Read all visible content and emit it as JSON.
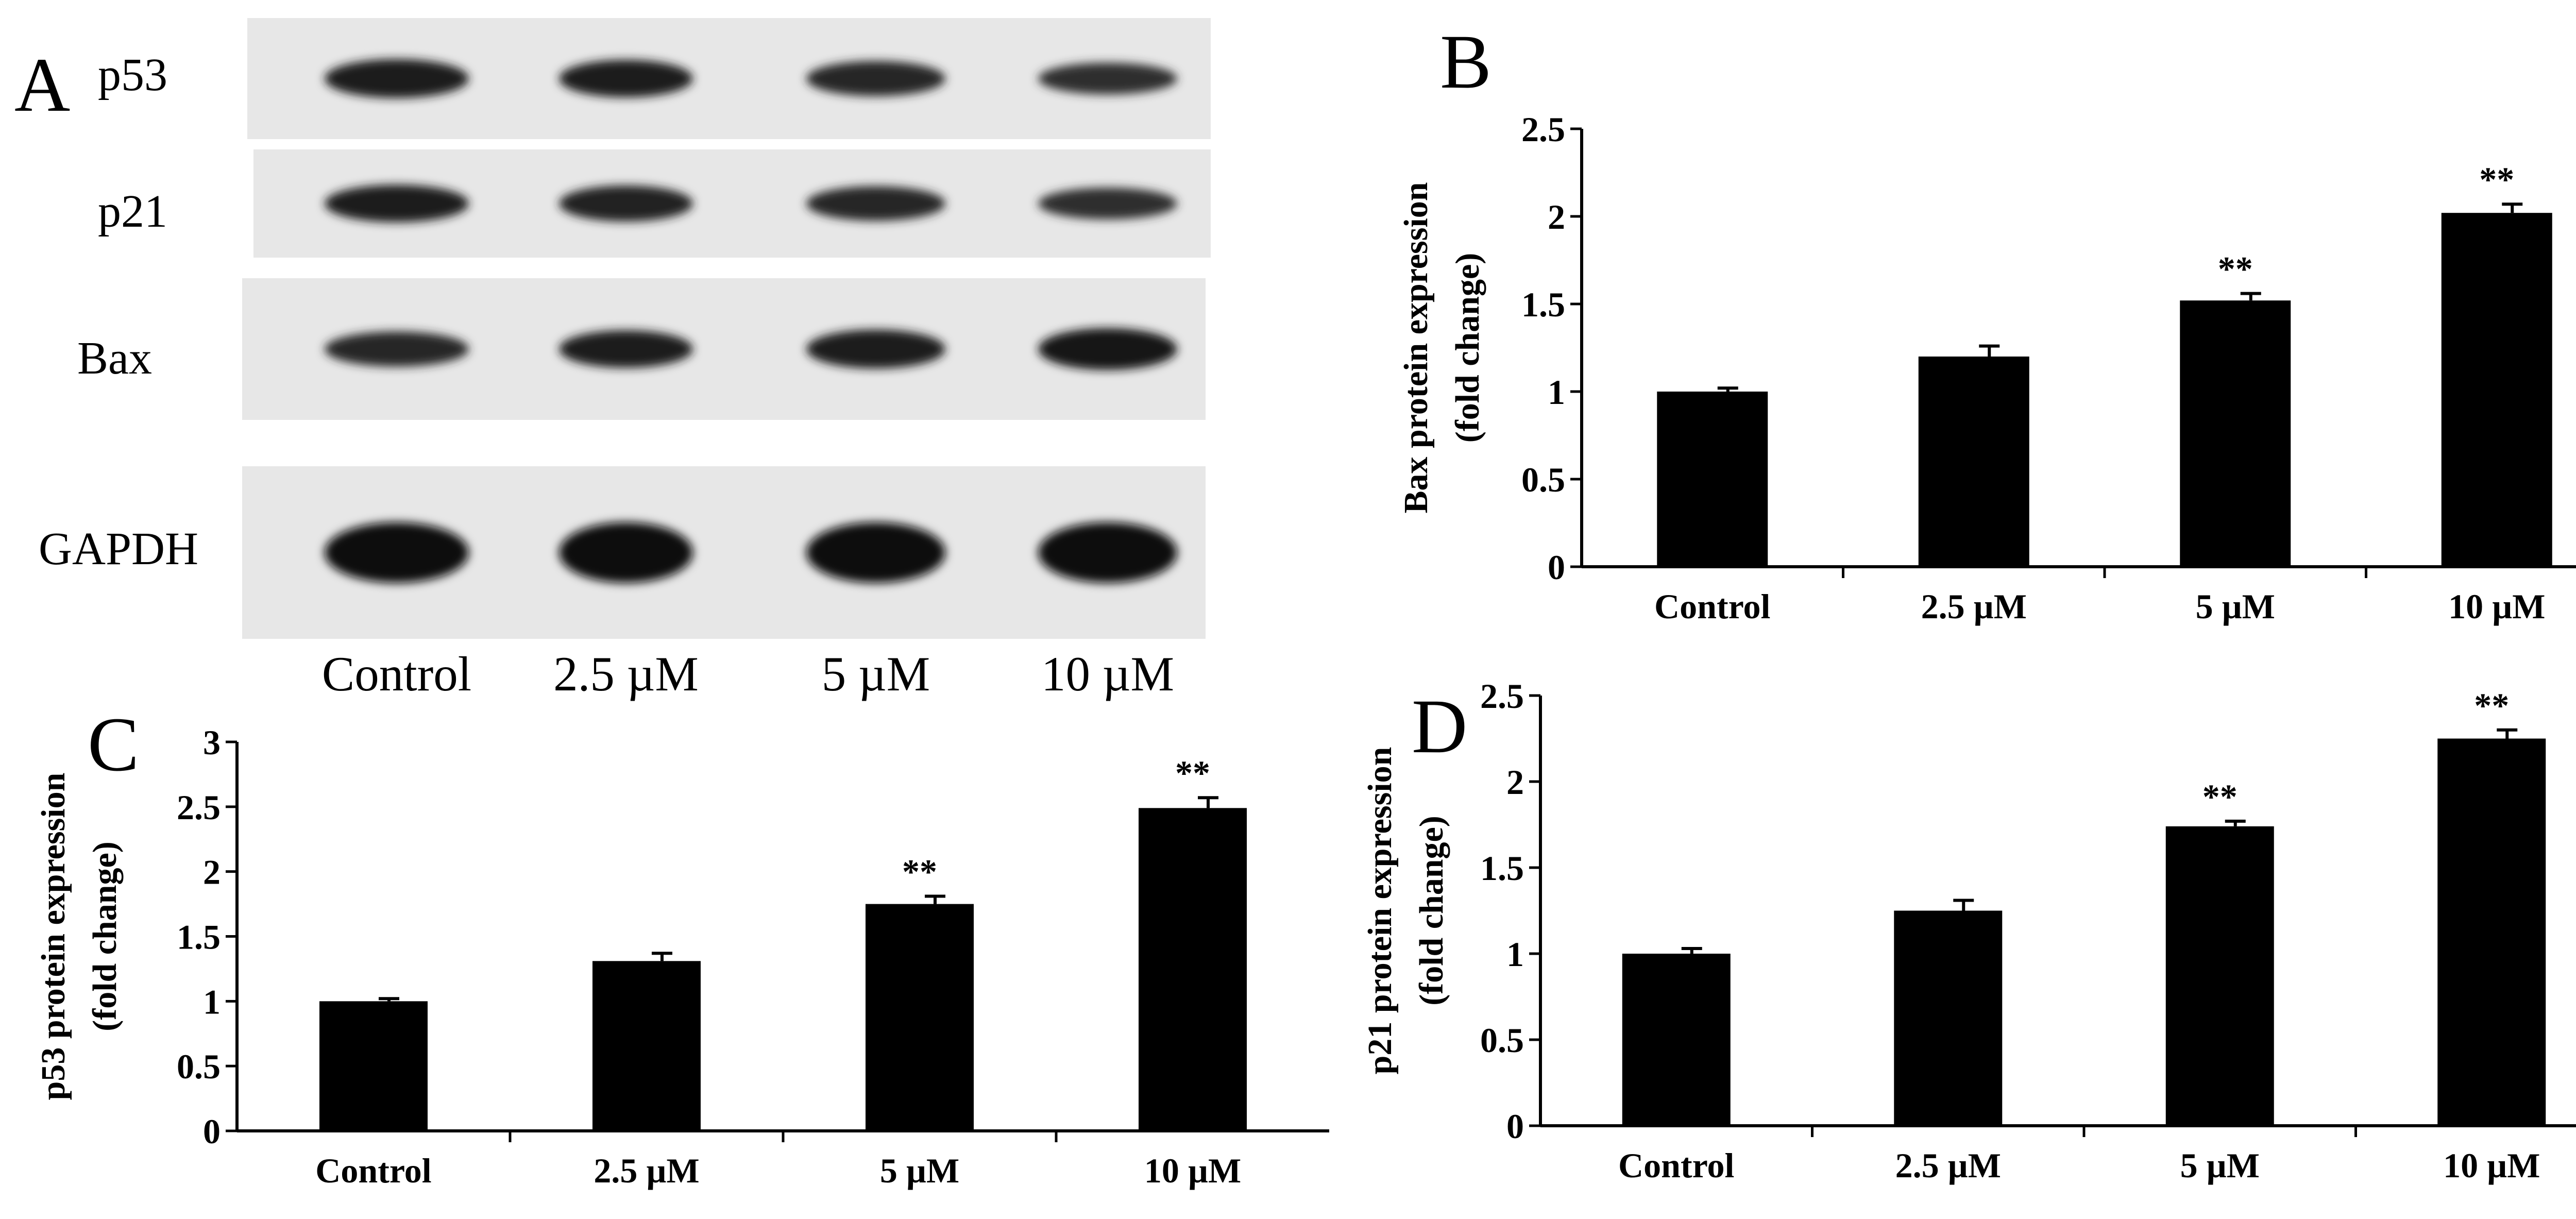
{
  "panel_letters": {
    "a": "A",
    "b": "B",
    "c": "C",
    "d": "D"
  },
  "blot": {
    "rows": [
      {
        "label": "p53",
        "intensity": [
          0.85,
          0.8,
          0.72,
          0.6
        ]
      },
      {
        "label": "p21",
        "intensity": [
          0.8,
          0.75,
          0.7,
          0.6
        ]
      },
      {
        "label": "Bax",
        "intensity": [
          0.72,
          0.8,
          0.85,
          0.95
        ]
      },
      {
        "label": "GAPDH",
        "intensity": [
          1.0,
          1.0,
          1.0,
          1.0
        ]
      }
    ],
    "lanes": [
      "Control",
      "2.5 µM",
      "5 µM",
      "10 µM"
    ]
  },
  "chart_data": [
    {
      "panel": "B",
      "type": "bar",
      "categories": [
        "Control",
        "2.5 µM",
        "5 µM",
        "10 µM"
      ],
      "values": [
        1.0,
        1.2,
        1.52,
        2.02
      ],
      "errors": [
        0.02,
        0.06,
        0.04,
        0.05
      ],
      "annotations": [
        "",
        "",
        "**",
        "**"
      ],
      "ylabel_line1": "Bax protein expression",
      "ylabel_line2": "(fold change)",
      "ylim": [
        0,
        2.5
      ],
      "yticks": [
        0,
        0.5,
        1,
        1.5,
        2,
        2.5
      ],
      "ytick_labels": [
        "0",
        "0.5",
        "1",
        "1.5",
        "2",
        "2.5"
      ],
      "bar_color": "#000000"
    },
    {
      "panel": "C",
      "type": "bar",
      "categories": [
        "Control",
        "2.5 µM",
        "5 µM",
        "10 µM"
      ],
      "values": [
        1.0,
        1.31,
        1.75,
        2.49
      ],
      "errors": [
        0.02,
        0.06,
        0.06,
        0.08
      ],
      "annotations": [
        "",
        "",
        "**",
        "**"
      ],
      "ylabel_line1": "p53 protein expression",
      "ylabel_line2": "(fold change)",
      "ylim": [
        0,
        3
      ],
      "yticks": [
        0,
        0.5,
        1,
        1.5,
        2,
        2.5,
        3
      ],
      "ytick_labels": [
        "0",
        "0.5",
        "1",
        "1.5",
        "2",
        "2.5",
        "3"
      ],
      "bar_color": "#000000"
    },
    {
      "panel": "D",
      "type": "bar",
      "categories": [
        "Control",
        "2.5 µM",
        "5 µM",
        "10 µM"
      ],
      "values": [
        1.0,
        1.25,
        1.74,
        2.25
      ],
      "errors": [
        0.03,
        0.06,
        0.03,
        0.05
      ],
      "annotations": [
        "",
        "",
        "**",
        "**"
      ],
      "ylabel_line1": "p21 protein expression",
      "ylabel_line2": "(fold change)",
      "ylim": [
        0,
        2.5
      ],
      "yticks": [
        0,
        0.5,
        1,
        1.5,
        2,
        2.5
      ],
      "ytick_labels": [
        "0",
        "0.5",
        "1",
        "1.5",
        "2",
        "2.5"
      ],
      "bar_color": "#000000"
    }
  ]
}
